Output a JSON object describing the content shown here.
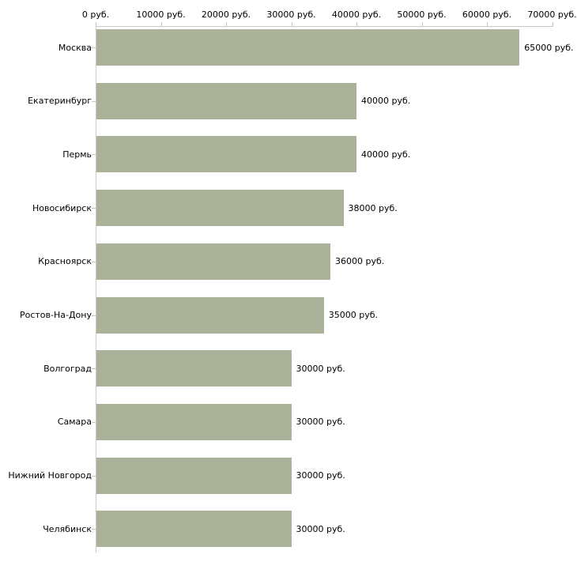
{
  "chart_data": {
    "type": "bar",
    "orientation": "horizontal",
    "title": "",
    "xlabel": "",
    "ylabel": "",
    "grid": false,
    "legend": null,
    "axis_position": "top",
    "xlim": [
      0,
      70000
    ],
    "x_ticks": [
      0,
      10000,
      20000,
      30000,
      40000,
      50000,
      60000,
      70000
    ],
    "x_tick_labels": [
      "0 руб.",
      "10000 руб.",
      "20000 руб.",
      "30000 руб.",
      "40000 руб.",
      "50000 руб.",
      "60000 руб.",
      "70000 руб."
    ],
    "categories": [
      "Москва",
      "Екатеринбург",
      "Пермь",
      "Новосибирск",
      "Красноярск",
      "Ростов-На-Дону",
      "Волгоград",
      "Самара",
      "Нижний Новгород",
      "Челябинск"
    ],
    "values": [
      65000,
      40000,
      40000,
      38000,
      36000,
      35000,
      30000,
      30000,
      30000,
      30000
    ],
    "value_labels": [
      "65000 руб.",
      "40000 руб.",
      "40000 руб.",
      "38000 руб.",
      "36000 руб.",
      "35000 руб.",
      "30000 руб.",
      "30000 руб.",
      "30000 руб.",
      "30000 руб."
    ],
    "colors": {
      "bar": "#abb29a",
      "axis_line": "#c9c9c9",
      "tick_mark": "#c5c7a9",
      "text": "#000000",
      "background": "#ffffff"
    }
  }
}
